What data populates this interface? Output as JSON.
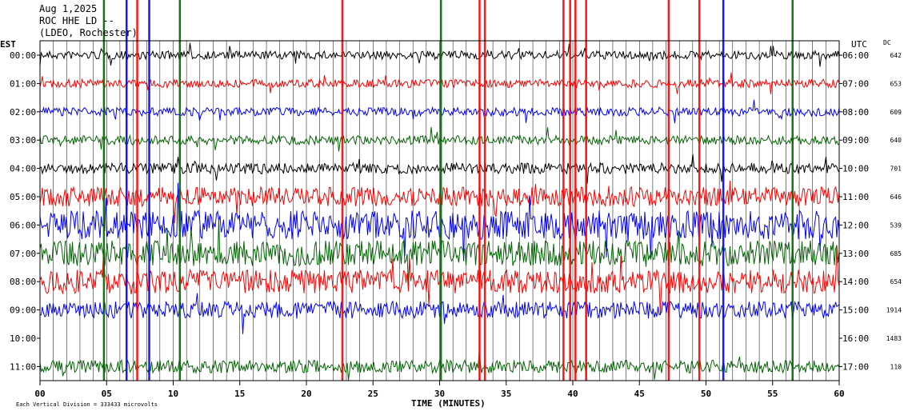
{
  "header": {
    "date": "Aug 1,2025",
    "station": "ROC HHE LD --",
    "institution": "(LDEO, Rochester)"
  },
  "left_axis_title": "EST",
  "right_axis_title": "UTC",
  "dc_title": "DC",
  "footer_note": "Each Vertical Division = 333433 microvolts",
  "chart_data": {
    "type": "line",
    "title": "",
    "xlabel": "TIME (MINUTES)",
    "x_range": [
      0,
      60
    ],
    "x_ticks": [
      0,
      5,
      10,
      15,
      20,
      25,
      30,
      35,
      40,
      45,
      50,
      55,
      60
    ],
    "x_tick_labels": [
      "00",
      "05",
      "10",
      "15",
      "20",
      "25",
      "30",
      "35",
      "40",
      "45",
      "50",
      "55",
      "60"
    ],
    "grid": true,
    "trace_colors": [
      "#000000",
      "#ff0000",
      "#0000ff",
      "#006400"
    ],
    "rows": [
      {
        "est": "00:00",
        "utc": "06:00",
        "dc": "642",
        "color": "#000000",
        "noise": 0.8
      },
      {
        "est": "01:00",
        "utc": "07:00",
        "dc": "653",
        "color": "#ff0000",
        "noise": 0.8
      },
      {
        "est": "02:00",
        "utc": "08:00",
        "dc": "609",
        "color": "#0000ff",
        "noise": 0.8
      },
      {
        "est": "03:00",
        "utc": "09:00",
        "dc": "640",
        "color": "#006400",
        "noise": 0.9
      },
      {
        "est": "04:00",
        "utc": "10:00",
        "dc": "701",
        "color": "#000000",
        "noise": 1.2
      },
      {
        "est": "05:00",
        "utc": "11:00",
        "dc": "646",
        "color": "#ff0000",
        "noise": 2.5
      },
      {
        "est": "06:00",
        "utc": "12:00",
        "dc": "539",
        "color": "#0000ff",
        "noise": 4.0
      },
      {
        "est": "07:00",
        "utc": "13:00",
        "dc": "685",
        "color": "#006400",
        "noise": 3.5
      },
      {
        "est": "08:00",
        "utc": "14:00",
        "dc": "654",
        "color": "#ff0000",
        "noise": 3.2
      },
      {
        "est": "09:00",
        "utc": "15:00",
        "dc": "1914",
        "color": "#0000ff",
        "noise": 2.2
      },
      {
        "est": "10:00",
        "utc": "16:00",
        "dc": "1483",
        "color": "#ffffff",
        "noise": 0
      },
      {
        "est": "11:00",
        "utc": "17:00",
        "dc": "110",
        "color": "#006400",
        "noise": 1.5
      }
    ],
    "spikes": [
      {
        "minute": 4.8,
        "color": "#006400"
      },
      {
        "minute": 6.5,
        "color": "#0000ff"
      },
      {
        "minute": 7.3,
        "color": "#ff0000"
      },
      {
        "minute": 8.2,
        "color": "#0000ff"
      },
      {
        "minute": 10.5,
        "color": "#006400"
      },
      {
        "minute": 22.7,
        "color": "#ff0000"
      },
      {
        "minute": 30.1,
        "color": "#006400"
      },
      {
        "minute": 33.0,
        "color": "#ff0000"
      },
      {
        "minute": 33.4,
        "color": "#ff0000"
      },
      {
        "minute": 39.3,
        "color": "#ff0000"
      },
      {
        "minute": 39.8,
        "color": "#ff0000"
      },
      {
        "minute": 40.2,
        "color": "#ff0000"
      },
      {
        "minute": 41.0,
        "color": "#ff0000"
      },
      {
        "minute": 47.2,
        "color": "#ff0000"
      },
      {
        "minute": 49.5,
        "color": "#ff0000"
      },
      {
        "minute": 51.3,
        "color": "#0000ff"
      },
      {
        "minute": 56.5,
        "color": "#006400"
      }
    ]
  }
}
